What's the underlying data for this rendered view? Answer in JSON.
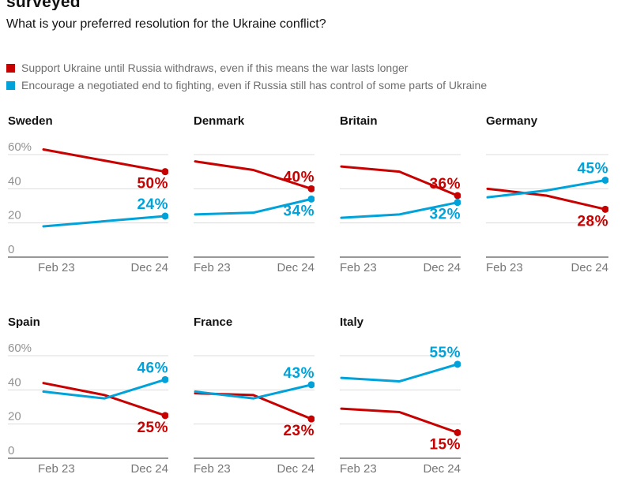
{
  "page": {
    "clipped_title": "surveyed",
    "subtitle": "What is your preferred resolution for the Ukraine conflict?"
  },
  "colors": {
    "red": "#c70000",
    "blue": "#00a2d9",
    "grid": "#dcdcdc",
    "zero_axis": "#767676",
    "tick_label": "#919191",
    "x_label": "#767676",
    "title_text": "#121212",
    "legend_text": "#6e6e6e"
  },
  "legend": [
    {
      "swatch": "red",
      "label": "Support Ukraine until Russia withdraws, even if this means the war lasts longer"
    },
    {
      "swatch": "blue",
      "label": "Encourage a negotiated end to fighting, even if Russia still has control of some parts of Ukraine"
    }
  ],
  "chart_data": {
    "type": "line",
    "x_tick_labels": [
      "Feb 23",
      "Dec 24"
    ],
    "y_ticks": [
      {
        "value": 60,
        "label": "60%"
      },
      {
        "value": 40,
        "label": "40"
      },
      {
        "value": 20,
        "label": "20"
      },
      {
        "value": 0,
        "label": "0"
      }
    ],
    "ylim": [
      0,
      68
    ],
    "grid_on": true,
    "series_names": {
      "red": "Support Ukraine until Russia withdraws",
      "blue": "Encourage a negotiated end to fighting"
    },
    "charts": [
      {
        "country": "Sweden",
        "row": 1,
        "red": {
          "values": [
            63,
            50
          ],
          "end_label": "50%",
          "label_pos": "below"
        },
        "blue": {
          "values": [
            18,
            24
          ],
          "end_label": "24%",
          "label_pos": "above"
        }
      },
      {
        "country": "Denmark",
        "row": 1,
        "red": {
          "values": [
            56,
            51,
            40
          ],
          "end_label": "40%",
          "label_pos": "above"
        },
        "blue": {
          "values": [
            25,
            26,
            34
          ],
          "end_label": "34%",
          "label_pos": "below"
        }
      },
      {
        "country": "Britain",
        "row": 1,
        "red": {
          "values": [
            53,
            50,
            36
          ],
          "end_label": "36%",
          "label_pos": "above"
        },
        "blue": {
          "values": [
            23,
            25,
            32
          ],
          "end_label": "32%",
          "label_pos": "below"
        }
      },
      {
        "country": "Germany",
        "row": 1,
        "red": {
          "values": [
            40,
            36,
            28
          ],
          "end_label": "28%",
          "label_pos": "below"
        },
        "blue": {
          "values": [
            35,
            39,
            45
          ],
          "end_label": "45%",
          "label_pos": "above"
        }
      },
      {
        "country": "Spain",
        "row": 2,
        "red": {
          "values": [
            44,
            37,
            25
          ],
          "end_label": "25%",
          "label_pos": "below"
        },
        "blue": {
          "values": [
            39,
            35,
            46
          ],
          "end_label": "46%",
          "label_pos": "above"
        }
      },
      {
        "country": "France",
        "row": 2,
        "red": {
          "values": [
            38,
            37,
            23
          ],
          "end_label": "23%",
          "label_pos": "below"
        },
        "blue": {
          "values": [
            39,
            35,
            43
          ],
          "end_label": "43%",
          "label_pos": "above"
        }
      },
      {
        "country": "Italy",
        "row": 2,
        "red": {
          "values": [
            29,
            27,
            15
          ],
          "end_label": "15%",
          "label_pos": "below"
        },
        "blue": {
          "values": [
            47,
            45,
            55
          ],
          "end_label": "55%",
          "label_pos": "above"
        }
      }
    ]
  }
}
